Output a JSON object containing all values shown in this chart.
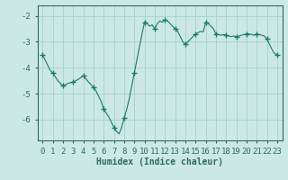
{
  "x": [
    0,
    0.25,
    0.5,
    0.75,
    1,
    1.25,
    1.5,
    1.75,
    2,
    2.25,
    2.5,
    2.75,
    3,
    3.25,
    3.5,
    3.75,
    4,
    4.25,
    4.5,
    4.75,
    5,
    5.25,
    5.5,
    5.75,
    6,
    6.25,
    6.5,
    6.75,
    7,
    7.25,
    7.5,
    7.75,
    8,
    8.25,
    8.5,
    8.75,
    9,
    9.25,
    9.5,
    9.75,
    10,
    10.25,
    10.5,
    10.75,
    11,
    11.25,
    11.5,
    11.75,
    12,
    12.25,
    12.5,
    12.75,
    13,
    13.25,
    13.5,
    13.75,
    14,
    14.25,
    14.5,
    14.75,
    15,
    15.25,
    15.5,
    15.75,
    16,
    16.25,
    16.5,
    16.75,
    17,
    17.25,
    17.5,
    17.75,
    18,
    18.25,
    18.5,
    18.75,
    19,
    19.25,
    19.5,
    19.75,
    20,
    20.25,
    20.5,
    20.75,
    21,
    21.25,
    21.5,
    21.75,
    22,
    22.25,
    22.5,
    22.75,
    23
  ],
  "y": [
    -3.5,
    -3.7,
    -3.9,
    -4.1,
    -4.2,
    -4.35,
    -4.5,
    -4.6,
    -4.7,
    -4.65,
    -4.6,
    -4.58,
    -4.55,
    -4.5,
    -4.45,
    -4.38,
    -4.3,
    -4.42,
    -4.55,
    -4.65,
    -4.75,
    -4.9,
    -5.1,
    -5.3,
    -5.6,
    -5.75,
    -5.9,
    -6.1,
    -6.3,
    -6.45,
    -6.55,
    -6.3,
    -5.95,
    -5.6,
    -5.2,
    -4.7,
    -4.2,
    -3.7,
    -3.2,
    -2.7,
    -2.25,
    -2.3,
    -2.4,
    -2.35,
    -2.5,
    -2.3,
    -2.2,
    -2.25,
    -2.15,
    -2.2,
    -2.3,
    -2.4,
    -2.5,
    -2.6,
    -2.8,
    -3.0,
    -3.1,
    -3.0,
    -2.9,
    -2.8,
    -2.7,
    -2.65,
    -2.6,
    -2.62,
    -2.25,
    -2.3,
    -2.4,
    -2.5,
    -2.7,
    -2.72,
    -2.75,
    -2.72,
    -2.75,
    -2.78,
    -2.8,
    -2.78,
    -2.8,
    -2.78,
    -2.75,
    -2.72,
    -2.7,
    -2.7,
    -2.72,
    -2.75,
    -2.7,
    -2.72,
    -2.75,
    -2.78,
    -2.9,
    -3.1,
    -3.3,
    -3.45,
    -3.5
  ],
  "marker_x": [
    0,
    1,
    2,
    3,
    4,
    5,
    6,
    7,
    8,
    9,
    10,
    11,
    12,
    13,
    14,
    15,
    16,
    17,
    18,
    19,
    20,
    21,
    22,
    23
  ],
  "marker_y": [
    -3.5,
    -4.2,
    -4.7,
    -4.55,
    -4.3,
    -4.75,
    -5.6,
    -6.3,
    -5.95,
    -4.2,
    -2.25,
    -2.5,
    -2.15,
    -2.5,
    -3.1,
    -2.7,
    -2.25,
    -2.7,
    -2.75,
    -2.8,
    -2.7,
    -2.7,
    -2.9,
    -3.5
  ],
  "line_color": "#1a7a6e",
  "marker": "+",
  "marker_size": 4,
  "marker_color": "#1a7a6e",
  "bg_color": "#cce8e5",
  "grid_color": "#aad4d0",
  "axis_color": "#2d6b5a",
  "xlabel": "Humidex (Indice chaleur)",
  "xlim": [
    -0.5,
    23.5
  ],
  "ylim": [
    -6.8,
    -1.6
  ],
  "yticks": [
    -6,
    -5,
    -4,
    -3,
    -2
  ],
  "xticks": [
    0,
    1,
    2,
    3,
    4,
    5,
    6,
    7,
    8,
    9,
    10,
    11,
    12,
    13,
    14,
    15,
    16,
    17,
    18,
    19,
    20,
    21,
    22,
    23
  ],
  "xlabel_fontsize": 7,
  "tick_fontsize": 6.5
}
